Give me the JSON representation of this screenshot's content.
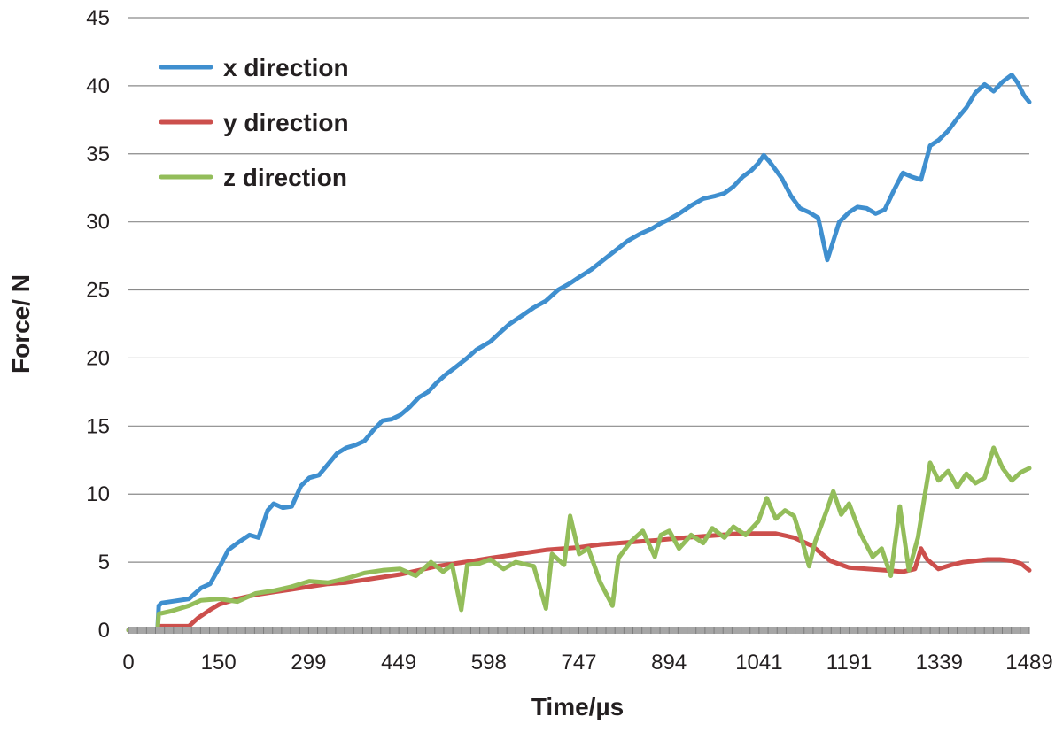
{
  "chart_data": {
    "type": "line",
    "title": "",
    "xlabel": "Time/µs",
    "ylabel": "Force/ N",
    "xlim": [
      0,
      1489
    ],
    "ylim": [
      0,
      45
    ],
    "x_ticks": [
      "0",
      "150",
      "299",
      "449",
      "598",
      "747",
      "894",
      "1041",
      "1191",
      "1339",
      "1489"
    ],
    "y_ticks": [
      "0",
      "5",
      "10",
      "15",
      "20",
      "25",
      "30",
      "35",
      "40",
      "45"
    ],
    "grid": "horizontal",
    "legend_position": "top-left",
    "series": [
      {
        "name": "x direction",
        "color": "#3f8fcf",
        "points": [
          [
            0,
            0
          ],
          [
            48,
            0
          ],
          [
            50,
            1.8
          ],
          [
            55,
            2.0
          ],
          [
            70,
            2.1
          ],
          [
            100,
            2.3
          ],
          [
            120,
            3.1
          ],
          [
            135,
            3.4
          ],
          [
            150,
            4.6
          ],
          [
            165,
            5.9
          ],
          [
            180,
            6.4
          ],
          [
            200,
            7.0
          ],
          [
            215,
            6.8
          ],
          [
            230,
            8.8
          ],
          [
            240,
            9.3
          ],
          [
            255,
            9.0
          ],
          [
            270,
            9.1
          ],
          [
            285,
            10.6
          ],
          [
            299,
            11.2
          ],
          [
            315,
            11.4
          ],
          [
            330,
            12.2
          ],
          [
            345,
            13.0
          ],
          [
            360,
            13.4
          ],
          [
            375,
            13.6
          ],
          [
            390,
            13.9
          ],
          [
            405,
            14.7
          ],
          [
            420,
            15.4
          ],
          [
            435,
            15.5
          ],
          [
            449,
            15.8
          ],
          [
            465,
            16.4
          ],
          [
            480,
            17.1
          ],
          [
            495,
            17.5
          ],
          [
            510,
            18.2
          ],
          [
            525,
            18.8
          ],
          [
            540,
            19.3
          ],
          [
            560,
            20.0
          ],
          [
            575,
            20.6
          ],
          [
            598,
            21.2
          ],
          [
            615,
            21.9
          ],
          [
            630,
            22.5
          ],
          [
            650,
            23.1
          ],
          [
            670,
            23.7
          ],
          [
            690,
            24.2
          ],
          [
            710,
            25.0
          ],
          [
            730,
            25.5
          ],
          [
            747,
            26.0
          ],
          [
            765,
            26.5
          ],
          [
            785,
            27.2
          ],
          [
            805,
            27.9
          ],
          [
            825,
            28.6
          ],
          [
            845,
            29.1
          ],
          [
            865,
            29.5
          ],
          [
            880,
            29.9
          ],
          [
            894,
            30.2
          ],
          [
            910,
            30.6
          ],
          [
            930,
            31.2
          ],
          [
            950,
            31.7
          ],
          [
            970,
            31.9
          ],
          [
            985,
            32.1
          ],
          [
            1000,
            32.6
          ],
          [
            1015,
            33.3
          ],
          [
            1030,
            33.8
          ],
          [
            1041,
            34.3
          ],
          [
            1050,
            34.9
          ],
          [
            1060,
            34.4
          ],
          [
            1070,
            33.8
          ],
          [
            1080,
            33.2
          ],
          [
            1095,
            31.9
          ],
          [
            1110,
            31.0
          ],
          [
            1125,
            30.7
          ],
          [
            1140,
            30.3
          ],
          [
            1155,
            27.2
          ],
          [
            1165,
            28.6
          ],
          [
            1175,
            30.0
          ],
          [
            1191,
            30.7
          ],
          [
            1205,
            31.1
          ],
          [
            1220,
            31.0
          ],
          [
            1235,
            30.6
          ],
          [
            1250,
            30.9
          ],
          [
            1265,
            32.3
          ],
          [
            1280,
            33.6
          ],
          [
            1295,
            33.3
          ],
          [
            1310,
            33.1
          ],
          [
            1325,
            35.6
          ],
          [
            1339,
            36.0
          ],
          [
            1355,
            36.7
          ],
          [
            1370,
            37.6
          ],
          [
            1385,
            38.4
          ],
          [
            1400,
            39.5
          ],
          [
            1415,
            40.1
          ],
          [
            1430,
            39.6
          ],
          [
            1445,
            40.3
          ],
          [
            1460,
            40.8
          ],
          [
            1470,
            40.2
          ],
          [
            1480,
            39.3
          ],
          [
            1489,
            38.8
          ]
        ]
      },
      {
        "name": "y direction",
        "color": "#cc4f4c",
        "points": [
          [
            0,
            0
          ],
          [
            48,
            0
          ],
          [
            50,
            0.3
          ],
          [
            100,
            0.3
          ],
          [
            115,
            0.9
          ],
          [
            135,
            1.5
          ],
          [
            150,
            1.9
          ],
          [
            180,
            2.3
          ],
          [
            210,
            2.6
          ],
          [
            240,
            2.8
          ],
          [
            270,
            3.0
          ],
          [
            299,
            3.2
          ],
          [
            330,
            3.4
          ],
          [
            360,
            3.5
          ],
          [
            390,
            3.7
          ],
          [
            420,
            3.9
          ],
          [
            449,
            4.1
          ],
          [
            480,
            4.4
          ],
          [
            510,
            4.7
          ],
          [
            540,
            4.9
          ],
          [
            570,
            5.1
          ],
          [
            598,
            5.3
          ],
          [
            630,
            5.5
          ],
          [
            660,
            5.7
          ],
          [
            690,
            5.9
          ],
          [
            720,
            6.0
          ],
          [
            747,
            6.1
          ],
          [
            780,
            6.3
          ],
          [
            810,
            6.4
          ],
          [
            840,
            6.5
          ],
          [
            870,
            6.6
          ],
          [
            894,
            6.7
          ],
          [
            920,
            6.8
          ],
          [
            950,
            6.9
          ],
          [
            980,
            7.0
          ],
          [
            1010,
            7.1
          ],
          [
            1041,
            7.1
          ],
          [
            1070,
            7.1
          ],
          [
            1100,
            6.8
          ],
          [
            1130,
            6.2
          ],
          [
            1160,
            5.1
          ],
          [
            1191,
            4.6
          ],
          [
            1220,
            4.5
          ],
          [
            1250,
            4.4
          ],
          [
            1280,
            4.3
          ],
          [
            1300,
            4.5
          ],
          [
            1310,
            6.0
          ],
          [
            1320,
            5.2
          ],
          [
            1339,
            4.5
          ],
          [
            1360,
            4.8
          ],
          [
            1380,
            5.0
          ],
          [
            1400,
            5.1
          ],
          [
            1420,
            5.2
          ],
          [
            1440,
            5.2
          ],
          [
            1460,
            5.1
          ],
          [
            1475,
            4.9
          ],
          [
            1489,
            4.4
          ]
        ]
      },
      {
        "name": "z direction",
        "color": "#93bd5a",
        "points": [
          [
            0,
            0
          ],
          [
            48,
            0
          ],
          [
            50,
            1.2
          ],
          [
            70,
            1.4
          ],
          [
            100,
            1.8
          ],
          [
            120,
            2.2
          ],
          [
            150,
            2.3
          ],
          [
            180,
            2.1
          ],
          [
            210,
            2.7
          ],
          [
            240,
            2.9
          ],
          [
            270,
            3.2
          ],
          [
            299,
            3.6
          ],
          [
            330,
            3.5
          ],
          [
            360,
            3.8
          ],
          [
            390,
            4.2
          ],
          [
            420,
            4.4
          ],
          [
            449,
            4.5
          ],
          [
            475,
            4.0
          ],
          [
            500,
            5.0
          ],
          [
            520,
            4.3
          ],
          [
            535,
            4.8
          ],
          [
            550,
            1.5
          ],
          [
            560,
            4.8
          ],
          [
            580,
            4.9
          ],
          [
            598,
            5.2
          ],
          [
            620,
            4.5
          ],
          [
            640,
            5.0
          ],
          [
            670,
            4.7
          ],
          [
            690,
            1.6
          ],
          [
            700,
            5.6
          ],
          [
            720,
            4.8
          ],
          [
            730,
            8.4
          ],
          [
            745,
            5.6
          ],
          [
            760,
            6.0
          ],
          [
            780,
            3.5
          ],
          [
            800,
            1.8
          ],
          [
            810,
            5.3
          ],
          [
            830,
            6.5
          ],
          [
            850,
            7.3
          ],
          [
            870,
            5.4
          ],
          [
            880,
            7.0
          ],
          [
            894,
            7.3
          ],
          [
            910,
            6.0
          ],
          [
            930,
            7.0
          ],
          [
            950,
            6.4
          ],
          [
            965,
            7.5
          ],
          [
            985,
            6.8
          ],
          [
            1000,
            7.6
          ],
          [
            1020,
            7.0
          ],
          [
            1041,
            8.0
          ],
          [
            1055,
            9.7
          ],
          [
            1070,
            8.2
          ],
          [
            1085,
            8.8
          ],
          [
            1100,
            8.4
          ],
          [
            1115,
            6.3
          ],
          [
            1125,
            4.7
          ],
          [
            1135,
            6.5
          ],
          [
            1155,
            8.9
          ],
          [
            1165,
            10.2
          ],
          [
            1178,
            8.5
          ],
          [
            1191,
            9.3
          ],
          [
            1210,
            7.1
          ],
          [
            1230,
            5.4
          ],
          [
            1245,
            6.0
          ],
          [
            1260,
            4.0
          ],
          [
            1275,
            9.1
          ],
          [
            1290,
            4.4
          ],
          [
            1305,
            6.8
          ],
          [
            1315,
            9.6
          ],
          [
            1325,
            12.3
          ],
          [
            1339,
            11.0
          ],
          [
            1355,
            11.7
          ],
          [
            1370,
            10.5
          ],
          [
            1385,
            11.5
          ],
          [
            1400,
            10.8
          ],
          [
            1415,
            11.2
          ],
          [
            1430,
            13.4
          ],
          [
            1445,
            11.9
          ],
          [
            1460,
            11.0
          ],
          [
            1475,
            11.6
          ],
          [
            1489,
            11.9
          ]
        ]
      }
    ]
  }
}
